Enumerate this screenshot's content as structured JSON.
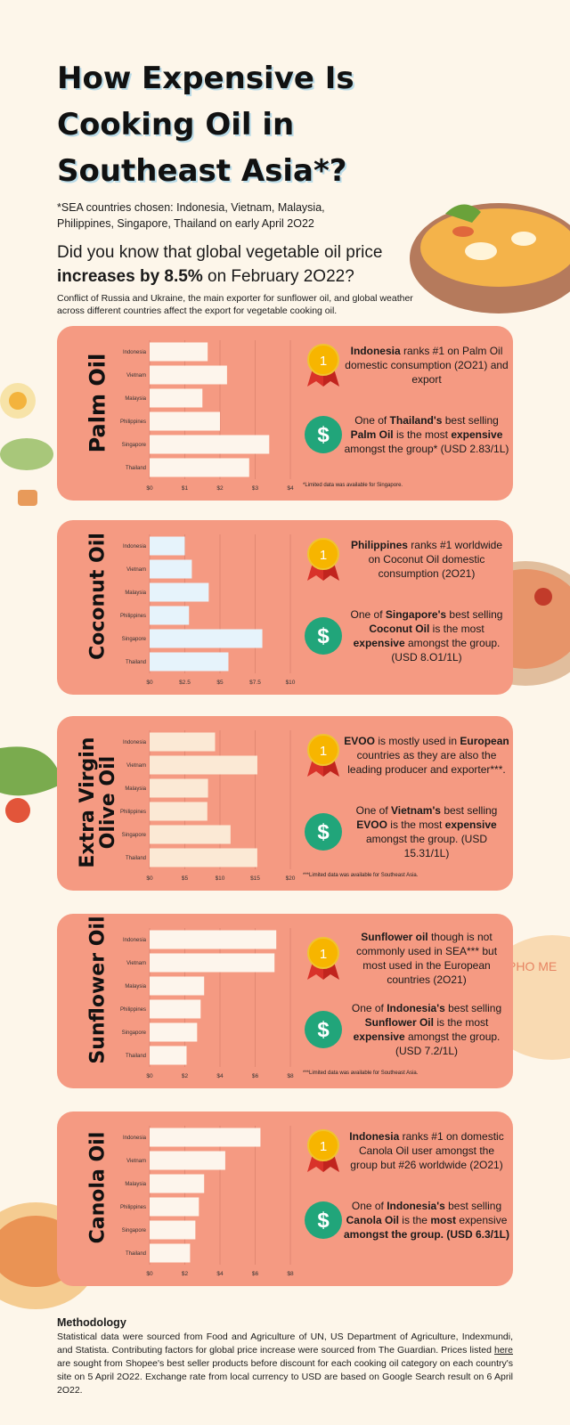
{
  "title": "How Expensive Is Cooking Oil in Southeast Asia*?",
  "subnote": "*SEA countries chosen: Indonesia, Vietnam, Malaysia, Philippines, Singapore, Thailand on early April 2O22",
  "question_pre": "Did you know that global vegetable oil price",
  "question_bold": "increases by 8.5%",
  "question_post": "on February 2O22?",
  "intro": "Conflict of Russia and Ukraine, the main exporter for sunflower oil, and global weather across different countries affect the export for vegetable cooking oil.",
  "badge_rank": "1",
  "badge_dollar": "$",
  "decor_text": "PHO ME",
  "cards": [
    {
      "label_lines": [
        "Palm Oil"
      ],
      "info1": [
        "",
        "Indonesia",
        " ranks #1 on Palm Oil domestic consumption (2O21) and export"
      ],
      "info2": [
        "One of ",
        "Thailand's",
        " best selling ",
        "Palm Oil",
        " is the most ",
        "expensive",
        " amongst the group* (USD 2.83/1L)"
      ],
      "footnote": "*Limited data was available for Singapore."
    },
    {
      "label_lines": [
        "Coconut Oil"
      ],
      "info1": [
        "",
        "Philippines",
        " ranks #1 worldwide on Coconut Oil domestic consumption (2O21)"
      ],
      "info2": [
        "One of ",
        "Singapore's",
        " best selling ",
        "Coconut Oil",
        " is the most ",
        "expensive",
        " amongst the group. (USD 8.O1/1L)"
      ],
      "footnote": ""
    },
    {
      "label_lines": [
        "Extra Virgin",
        "Olive Oil"
      ],
      "info1": [
        "",
        "EVOO",
        " is mostly used in ",
        "European",
        " countries as they are also the leading producer and exporter***."
      ],
      "info2": [
        "One of ",
        "Vietnam's",
        " best selling ",
        "EVOO",
        " is the most ",
        "expensive",
        " amongst the group. (USD 15.31/1L)"
      ],
      "footnote": "***Limited data was available for Southeast Asia."
    },
    {
      "label_lines": [
        "Sunflower Oil"
      ],
      "info1": [
        "",
        "Sunflower oil",
        " though is not commonly used in SEA*** but most used in the European countries (2O21)"
      ],
      "info2": [
        "One of ",
        "Indonesia's",
        " best selling ",
        "Sunflower Oil",
        " is the most ",
        "expensive",
        " amongst the group. (USD 7.2/1L)"
      ],
      "footnote": "***Limited data was available for Southeast Asia."
    },
    {
      "label_lines": [
        "Canola Oil"
      ],
      "info1": [
        "",
        "Indonesia",
        " ranks #1 on domestic Canola Oil user amongst the group but #26 worldwide (2O21)"
      ],
      "info2": [
        "One of ",
        "Indonesia's",
        " best selling ",
        "Canola Oil",
        " is the ",
        "most ",
        "expensive",
        " amongst the group. (USD 6.3/1L)"
      ],
      "footnote": ""
    }
  ],
  "chart_data": [
    {
      "type": "bar",
      "orientation": "horizontal",
      "categories": [
        "Indonesia",
        "Vietnam",
        "Malaysia",
        "Philippines",
        "Singapore",
        "Thailand"
      ],
      "values": [
        1.65,
        2.2,
        1.5,
        2.0,
        3.4,
        2.83
      ],
      "xlim": [
        0,
        4
      ],
      "ticks": [
        "$0",
        "$1",
        "$2",
        "$3",
        "$4"
      ],
      "bar_color": "#fdf5ec"
    },
    {
      "type": "bar",
      "orientation": "horizontal",
      "categories": [
        "Indonesia",
        "Vietnam",
        "Malaysia",
        "Philippines",
        "Singapore",
        "Thailand"
      ],
      "values": [
        2.5,
        3.0,
        4.2,
        2.8,
        8.01,
        5.6
      ],
      "xlim": [
        0,
        10
      ],
      "ticks": [
        "$0",
        "$2.5",
        "$5",
        "$7.5",
        "$10"
      ],
      "bar_color": "#e6f3fb"
    },
    {
      "type": "bar",
      "orientation": "horizontal",
      "categories": [
        "Indonesia",
        "Vietnam",
        "Malaysia",
        "Philippines",
        "Singapore",
        "Thailand"
      ],
      "values": [
        9.3,
        15.31,
        8.3,
        8.2,
        11.5,
        15.3
      ],
      "xlim": [
        0,
        20
      ],
      "ticks": [
        "$0",
        "$5",
        "$10",
        "$15",
        "$20"
      ],
      "bar_color": "#fbe9d5"
    },
    {
      "type": "bar",
      "orientation": "horizontal",
      "categories": [
        "Indonesia",
        "Vietnam",
        "Malaysia",
        "Philippines",
        "Singapore",
        "Thailand"
      ],
      "values": [
        7.2,
        7.1,
        3.1,
        2.9,
        2.7,
        2.1
      ],
      "xlim": [
        0,
        8
      ],
      "ticks": [
        "$0",
        "$2",
        "$4",
        "$6",
        "$8"
      ],
      "bar_color": "#fdf5ec"
    },
    {
      "type": "bar",
      "orientation": "horizontal",
      "categories": [
        "Indonesia",
        "Vietnam",
        "Malaysia",
        "Philippines",
        "Singapore",
        "Thailand"
      ],
      "values": [
        6.3,
        4.3,
        3.1,
        2.8,
        2.6,
        2.3
      ],
      "xlim": [
        0,
        8
      ],
      "ticks": [
        "$0",
        "$2",
        "$4",
        "$6",
        "$8"
      ],
      "bar_color": "#fdf5ec"
    }
  ],
  "methodology": {
    "title": "Methodology",
    "text_pre": "Statistical data were sourced from Food and Agriculture of UN,  US Department of Agriculture, Indexmundi, and Statista. Contributing factors for global price increase were sourced from The Guardian. Prices listed ",
    "link": "here",
    "text_post": " are sought from Shopee's best seller products before discount for each cooking oil category on each country's site on 5 April 2O22. Exchange rate from local currency to USD are based on Google Search result on 6 April 2O22."
  }
}
